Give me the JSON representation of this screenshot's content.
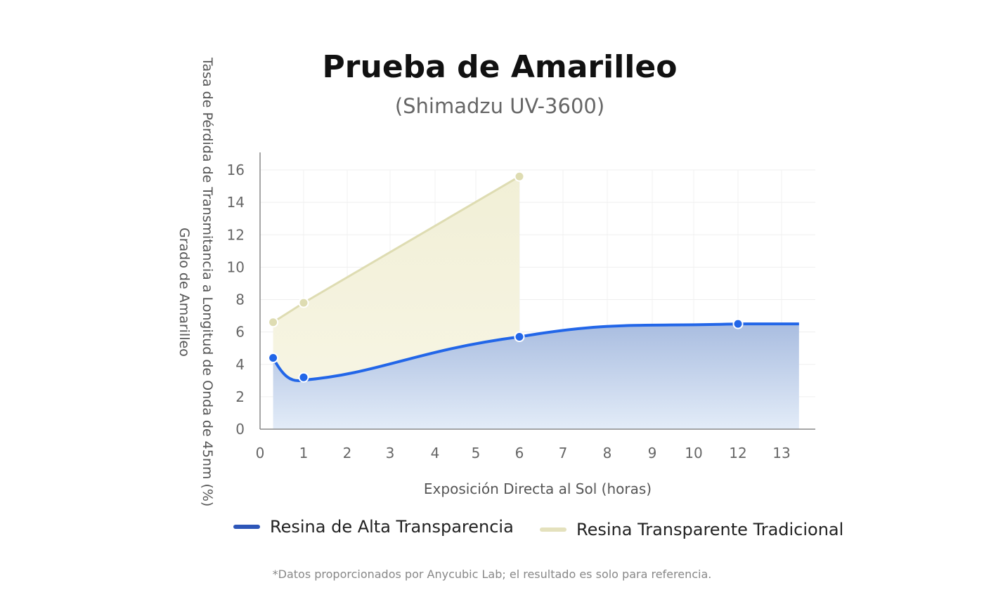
{
  "chart_data": {
    "type": "area",
    "title": "Prueba de Amarilleo",
    "subtitle": "(Shimadzu UV-3600)",
    "xlabel": "Exposición Directa al Sol (horas)",
    "ylabel_lines": [
      "Tasa de Pérdida de Transmitancia a Longitud de Onda de 45nm (%)",
      "Grado de Amarilleo"
    ],
    "xlim": [
      0,
      13
    ],
    "ylim": [
      0,
      16
    ],
    "x_ticks": [
      0,
      1,
      2,
      3,
      4,
      5,
      6,
      7,
      8,
      9,
      10,
      12,
      13
    ],
    "y_ticks": [
      0,
      2,
      4,
      6,
      8,
      10,
      12,
      14,
      16
    ],
    "grid": true,
    "legend_position": "bottom",
    "series": [
      {
        "name": "Resina de Alta Transparencia",
        "color": "#2266e8",
        "x": [
          0.3,
          1,
          6,
          12
        ],
        "values": [
          4.4,
          3.2,
          5.7,
          6.5
        ],
        "line_end_x": 13.4
      },
      {
        "name": "Resina Transparente Tradicional",
        "color": "#dedcb2",
        "x": [
          0.3,
          1,
          6
        ],
        "values": [
          6.6,
          7.8,
          15.6
        ]
      }
    ],
    "footnote": "*Datos proporcionados por Anycubic Lab; el resultado es solo para referencia."
  }
}
